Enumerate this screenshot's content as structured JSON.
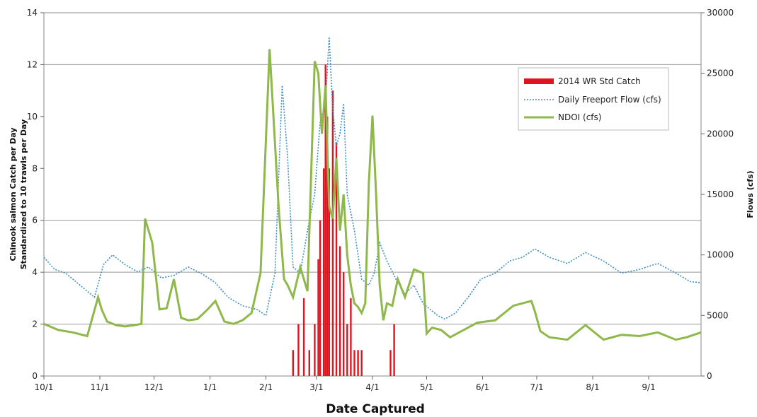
{
  "chart_data": {
    "type": "line",
    "xlabel": "Date Captured",
    "ylabel_line1": "Chinook salmon Catch per Day",
    "ylabel_line2": "Standardized  to 10 trawls per Day",
    "y2label": "Flows (cfs)",
    "x_tick_labels": [
      "10/1",
      "11/1",
      "12/1",
      "1/1",
      "2/1",
      "3/1",
      "4/1",
      "5/1",
      "6/1",
      "7/1",
      "8/1",
      "9/1"
    ],
    "x_tick_days": [
      0,
      31,
      61,
      92,
      123,
      151,
      182,
      212,
      243,
      273,
      304,
      335
    ],
    "x_range_days": [
      0,
      364
    ],
    "ylim": [
      0,
      14
    ],
    "yticks": [
      0,
      2,
      4,
      6,
      8,
      10,
      12,
      14
    ],
    "y2lim": [
      0,
      30000
    ],
    "y2ticks": [
      0,
      5000,
      10000,
      15000,
      20000,
      25000,
      30000
    ],
    "gridlines_y": [
      2,
      4,
      6,
      12
    ],
    "legend_position": "top-right",
    "colors": {
      "catch": "#e0141e",
      "freeport": "#3a8fc4",
      "ndoi": "#8fb84a"
    },
    "series": [
      {
        "name": "2014 WR Std Catch",
        "axis": "left",
        "style": "bar",
        "x": [
          138,
          141,
          144,
          147,
          150,
          152,
          153,
          155,
          156,
          157,
          158,
          160,
          162,
          164,
          166,
          168,
          170,
          172,
          174,
          176,
          192,
          194
        ],
        "values": [
          1,
          2,
          3,
          1,
          2,
          4.5,
          6,
          8,
          12,
          10,
          8,
          11,
          9,
          5,
          4,
          2,
          3,
          1,
          1,
          1,
          1,
          2
        ]
      },
      {
        "name": "Daily Freeport Flow (cfs)",
        "axis": "right",
        "style": "dotted",
        "x": [
          0,
          6,
          12,
          20,
          28,
          33,
          38,
          45,
          52,
          58,
          65,
          72,
          80,
          88,
          95,
          102,
          110,
          118,
          123,
          128,
          132,
          135,
          138,
          142,
          146,
          150,
          153,
          156,
          158,
          160,
          162,
          164,
          166,
          168,
          172,
          176,
          180,
          183,
          186,
          190,
          195,
          200,
          205,
          210,
          214,
          218,
          222,
          228,
          235,
          242,
          250,
          258,
          265,
          272,
          280,
          290,
          300,
          310,
          320,
          330,
          340,
          350,
          358,
          364
        ],
        "values": [
          9800,
          8800,
          8500,
          7500,
          6500,
          9200,
          10000,
          9200,
          8600,
          9000,
          8100,
          8300,
          9000,
          8400,
          7700,
          6500,
          5800,
          5500,
          5000,
          8500,
          24000,
          18000,
          9000,
          8500,
          12000,
          15000,
          21000,
          22500,
          28000,
          22000,
          19000,
          20000,
          22500,
          15000,
          12000,
          8000,
          7500,
          8500,
          11000,
          9500,
          8000,
          6800,
          7500,
          6000,
          5500,
          5000,
          4700,
          5200,
          6500,
          8000,
          8500,
          9500,
          9800,
          10500,
          9800,
          9300,
          10200,
          9500,
          8500,
          8800,
          9300,
          8500,
          7800,
          7700
        ]
      },
      {
        "name": "NDOI (cfs)",
        "axis": "right",
        "style": "solid",
        "x": [
          0,
          8,
          16,
          24,
          30,
          32,
          35,
          40,
          45,
          50,
          54,
          56,
          60,
          64,
          68,
          72,
          76,
          80,
          85,
          90,
          95,
          100,
          105,
          110,
          115,
          120,
          125,
          130,
          133,
          135,
          138,
          142,
          146,
          150,
          152,
          154,
          156,
          158,
          160,
          162,
          164,
          166,
          168,
          170,
          172,
          174,
          176,
          178,
          180,
          182,
          184,
          186,
          188,
          190,
          193,
          196,
          200,
          205,
          210,
          212,
          215,
          220,
          225,
          230,
          240,
          250,
          260,
          270,
          272,
          275,
          280,
          290,
          300,
          310,
          320,
          330,
          340,
          350,
          356,
          364
        ],
        "values": [
          4300,
          3800,
          3600,
          3300,
          6500,
          5500,
          4500,
          4200,
          4100,
          4200,
          4300,
          13000,
          11000,
          5500,
          5600,
          8000,
          4800,
          4600,
          4700,
          5400,
          6200,
          4500,
          4300,
          4600,
          5200,
          8500,
          27000,
          14000,
          8000,
          7500,
          6500,
          9000,
          7000,
          26000,
          25000,
          20000,
          24000,
          14000,
          13000,
          18000,
          12000,
          15000,
          10000,
          7500,
          6000,
          5700,
          5200,
          6000,
          16000,
          21500,
          15000,
          7500,
          4600,
          6000,
          5800,
          8000,
          6500,
          8800,
          8500,
          3500,
          4000,
          3800,
          3200,
          3600,
          4400,
          4600,
          5800,
          6200,
          5300,
          3700,
          3200,
          3000,
          4200,
          3000,
          3400,
          3300,
          3600,
          3000,
          3200,
          3600
        ]
      }
    ]
  }
}
